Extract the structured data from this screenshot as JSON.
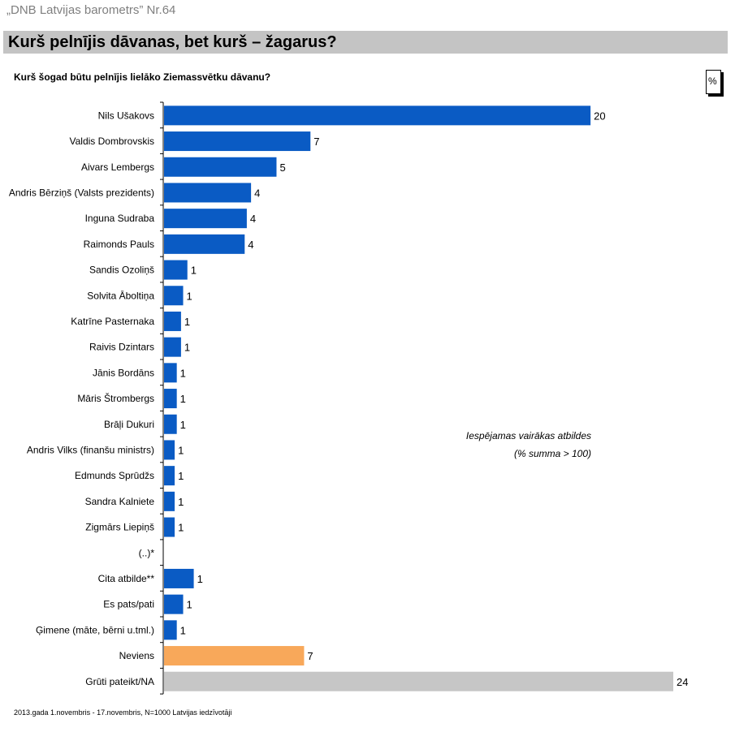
{
  "header": {
    "source_title": "„DNB Latvijas barometrs” Nr.64",
    "main_title": "Kurš pelnījis dāvanas, bet kurš – žagarus?",
    "question": "Kurš šogad būtu pelnījis lielāko Ziemassvētku dāvanu?",
    "unit_box": "%"
  },
  "notes": {
    "line1": "Iespējamas vairākas atbildes",
    "line2": "(% summa > 100)"
  },
  "footer": "2013.gada 1.novembris - 17.novembris, N=1000 Latvijas iedzīvotāji",
  "colors": {
    "bar_default": "#0a5bc4",
    "bar_neviens": "#f8a85a",
    "bar_gruti": "#c6c6c6"
  },
  "chart_data": {
    "type": "bar",
    "orientation": "horizontal",
    "categories": [
      "Nils Ušakovs",
      "Valdis Dombrovskis",
      "Aivars Lembergs",
      "Andris Bērziņš (Valsts prezidents)",
      "Inguna Sudraba",
      "Raimonds Pauls",
      "Sandis Ozoliņš",
      "Solvita Āboltiņa",
      "Katrīne Pasternaka",
      "Raivis Dzintars",
      "Jānis Bordāns",
      "Māris Štrombergs",
      "Brāļi Dukuri",
      "Andris Vilks (finanšu ministrs)",
      "Edmunds Sprūdžs",
      "Sandra Kalniete",
      "Zigmārs Liepiņš",
      "(..)*",
      "Cita atbilde**",
      "Es pats/pati",
      "Ģimene (māte, bērni u.tml.)",
      "Neviens",
      "Grūti pateikt/NA"
    ],
    "values": [
      20,
      7,
      5,
      4,
      4,
      4,
      1,
      1,
      1,
      1,
      1,
      1,
      1,
      1,
      1,
      1,
      1,
      null,
      1,
      1,
      1,
      7,
      24
    ],
    "bar_lengths": [
      20.1,
      6.9,
      5.3,
      4.1,
      3.9,
      3.8,
      1.1,
      0.9,
      0.8,
      0.8,
      0.6,
      0.6,
      0.6,
      0.5,
      0.5,
      0.5,
      0.5,
      0,
      1.4,
      0.9,
      0.6,
      6.6,
      24.0
    ],
    "labels": [
      "20",
      "7",
      "5",
      "4",
      "4",
      "4",
      "1",
      "1",
      "1",
      "1",
      "1",
      "1",
      "1",
      "1",
      "1",
      "1",
      "1",
      "",
      "1",
      "1",
      "1",
      "7",
      "24"
    ],
    "bar_colors": [
      "bar_default",
      "bar_default",
      "bar_default",
      "bar_default",
      "bar_default",
      "bar_default",
      "bar_default",
      "bar_default",
      "bar_default",
      "bar_default",
      "bar_default",
      "bar_default",
      "bar_default",
      "bar_default",
      "bar_default",
      "bar_default",
      "bar_default",
      "bar_default",
      "bar_default",
      "bar_default",
      "bar_default",
      "bar_neviens",
      "bar_gruti"
    ],
    "xlim": [
      0,
      24
    ],
    "grid": false,
    "legend": "none"
  }
}
